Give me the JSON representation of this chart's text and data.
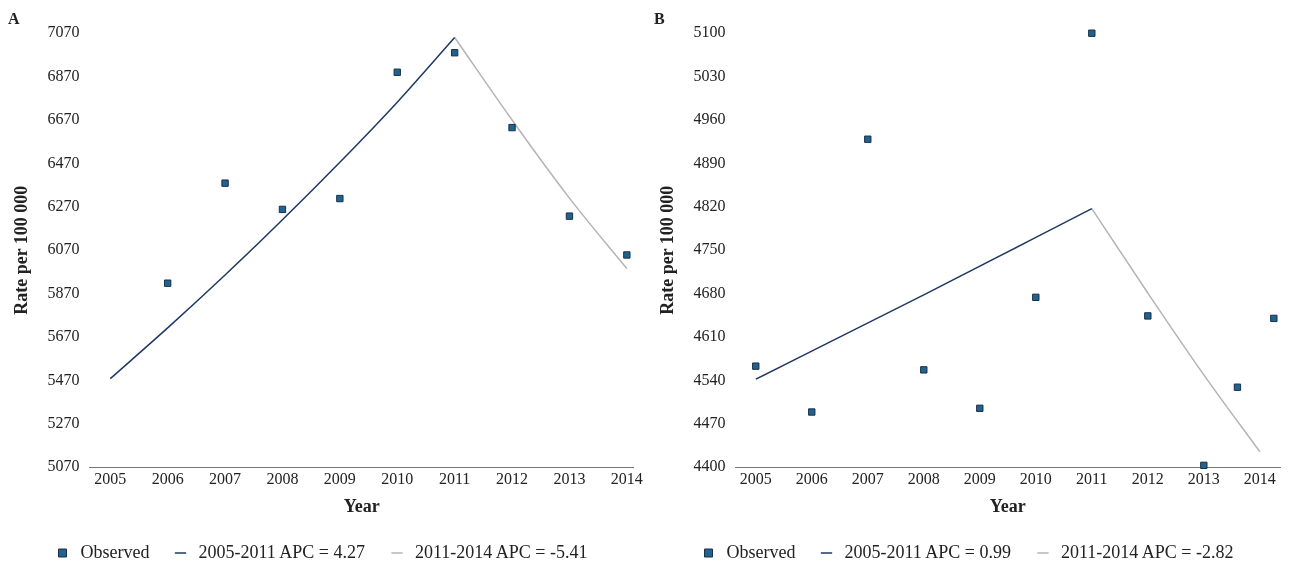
{
  "chart_data": [
    {
      "type": "scatter",
      "title": "A",
      "xlabel": "Year",
      "ylabel": "Rate per 100 000",
      "xlim": [
        2004.64,
        2014.12
      ],
      "xticks": [
        2005,
        2006,
        2007,
        2008,
        2009,
        2010,
        2011,
        2012,
        2013,
        2014
      ],
      "ylim": [
        5070,
        7070
      ],
      "yticks": [
        5070,
        5270,
        5470,
        5670,
        5870,
        6070,
        6270,
        6470,
        6670,
        6870,
        7070
      ],
      "grid": false,
      "legend": "bottom",
      "series": [
        {
          "name": "Observed",
          "marker": "square",
          "color": "#1f6391",
          "x": [
            2006,
            2007,
            2008,
            2009,
            2010,
            2011,
            2012,
            2013,
            2014
          ],
          "values": [
            5918,
            6379,
            6258,
            6308,
            6890,
            6980,
            6635,
            6227,
            6048
          ]
        },
        {
          "name": "2005-2011 APC = 4.27",
          "type": "line",
          "marker": "none",
          "color": "#1f3864",
          "x": [
            2005,
            2006,
            2007,
            2008,
            2009,
            2010,
            2011
          ],
          "values": [
            5478,
            5712,
            5956,
            6210,
            6475,
            6752,
            7050
          ]
        },
        {
          "name": "2011-2014 APC = -5.41",
          "type": "line",
          "marker": "none",
          "color": "#b4b4b4",
          "x": [
            2011,
            2012,
            2013,
            2014
          ],
          "values": [
            7050,
            6670,
            6310,
            5985
          ]
        }
      ]
    },
    {
      "type": "scatter",
      "title": "B",
      "xlabel": "Year",
      "ylabel": "Rate per 100 000",
      "xlim": [
        2004.64,
        2014.36
      ],
      "xticks": [
        2005,
        2006,
        2007,
        2008,
        2009,
        2010,
        2011,
        2012,
        2013,
        2014
      ],
      "ylim": [
        4400,
        5100
      ],
      "yticks": [
        4400,
        4470,
        4540,
        4610,
        4680,
        4750,
        4820,
        4890,
        4960,
        5030,
        5100
      ],
      "grid": false,
      "legend": "bottom",
      "series": [
        {
          "name": "Observed",
          "marker": "square",
          "color": "#1f6391",
          "x": [
            2005,
            2006,
            2007,
            2008,
            2009,
            2010,
            2011,
            2012,
            2013,
            2013.6,
            2014.25
          ],
          "values": [
            4563,
            4489,
            4929,
            4557,
            4495,
            4674,
            5100,
            4644,
            4403,
            4529,
            4640
          ]
        },
        {
          "name": "2005-2011 APC = 0.99",
          "type": "line",
          "marker": "none",
          "color": "#1f3864",
          "x": [
            2005,
            2008,
            2011
          ],
          "values": [
            4542,
            4678,
            4817
          ]
        },
        {
          "name": "2011-2014 APC = -2.82",
          "type": "line",
          "marker": "none",
          "color": "#b4b4b4",
          "x": [
            2011,
            2012,
            2013,
            2014
          ],
          "values": [
            4817,
            4681,
            4549,
            4425
          ]
        }
      ]
    }
  ]
}
